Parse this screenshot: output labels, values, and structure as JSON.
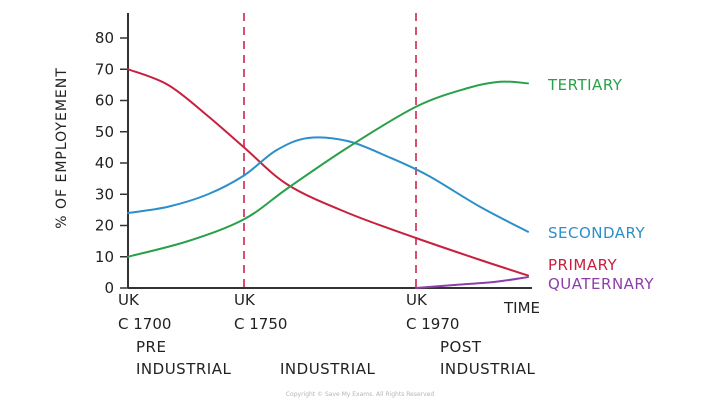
{
  "chart_data": {
    "type": "line",
    "ylabel": "% OF EMPLOYEMENT",
    "xlabel": "TIME",
    "ylim": [
      0,
      85
    ],
    "yticks": [
      0,
      10,
      20,
      30,
      40,
      50,
      60,
      70,
      80
    ],
    "x_range": [
      0,
      100
    ],
    "x_markers": [
      {
        "x": 0,
        "line1": "UK",
        "line2": "C 1700"
      },
      {
        "x": 29,
        "line1": "UK",
        "line2": "C 1750",
        "dashed": true
      },
      {
        "x": 72,
        "line1": "UK",
        "line2": "C 1970",
        "dashed": true
      }
    ],
    "phases": [
      {
        "name": "pre-industrial",
        "lines": [
          "PRE",
          "INDUSTRIAL"
        ]
      },
      {
        "name": "industrial",
        "lines": [
          "INDUSTRIAL"
        ]
      },
      {
        "name": "post-industrial",
        "lines": [
          "POST",
          "INDUSTRIAL"
        ]
      }
    ],
    "series": [
      {
        "name": "PRIMARY",
        "color": "#c8203f",
        "points": [
          [
            0,
            70
          ],
          [
            10,
            65
          ],
          [
            20,
            55
          ],
          [
            29,
            45
          ],
          [
            40,
            33
          ],
          [
            55,
            24
          ],
          [
            72,
            16
          ],
          [
            88,
            9
          ],
          [
            100,
            4
          ]
        ]
      },
      {
        "name": "SECONDARY",
        "color": "#2d8fc9",
        "points": [
          [
            0,
            24
          ],
          [
            10,
            26
          ],
          [
            20,
            30
          ],
          [
            29,
            36
          ],
          [
            37,
            44
          ],
          [
            45,
            48
          ],
          [
            55,
            47
          ],
          [
            65,
            42
          ],
          [
            75,
            36
          ],
          [
            88,
            26
          ],
          [
            100,
            18
          ]
        ]
      },
      {
        "name": "TERTIARY",
        "color": "#2aa04a",
        "points": [
          [
            0,
            10
          ],
          [
            15,
            15
          ],
          [
            29,
            22
          ],
          [
            40,
            32
          ],
          [
            55,
            45
          ],
          [
            72,
            58
          ],
          [
            85,
            64
          ],
          [
            93,
            66
          ],
          [
            100,
            65.5
          ]
        ]
      },
      {
        "name": "QUATERNARY",
        "color": "#8b3fa8",
        "points": [
          [
            72,
            0
          ],
          [
            82,
            1
          ],
          [
            92,
            2
          ],
          [
            100,
            3.5
          ]
        ]
      }
    ],
    "grid": false,
    "legend": "right, inline labels"
  },
  "copyright": "Copyright © Save My Exams. All Rights Reserved"
}
